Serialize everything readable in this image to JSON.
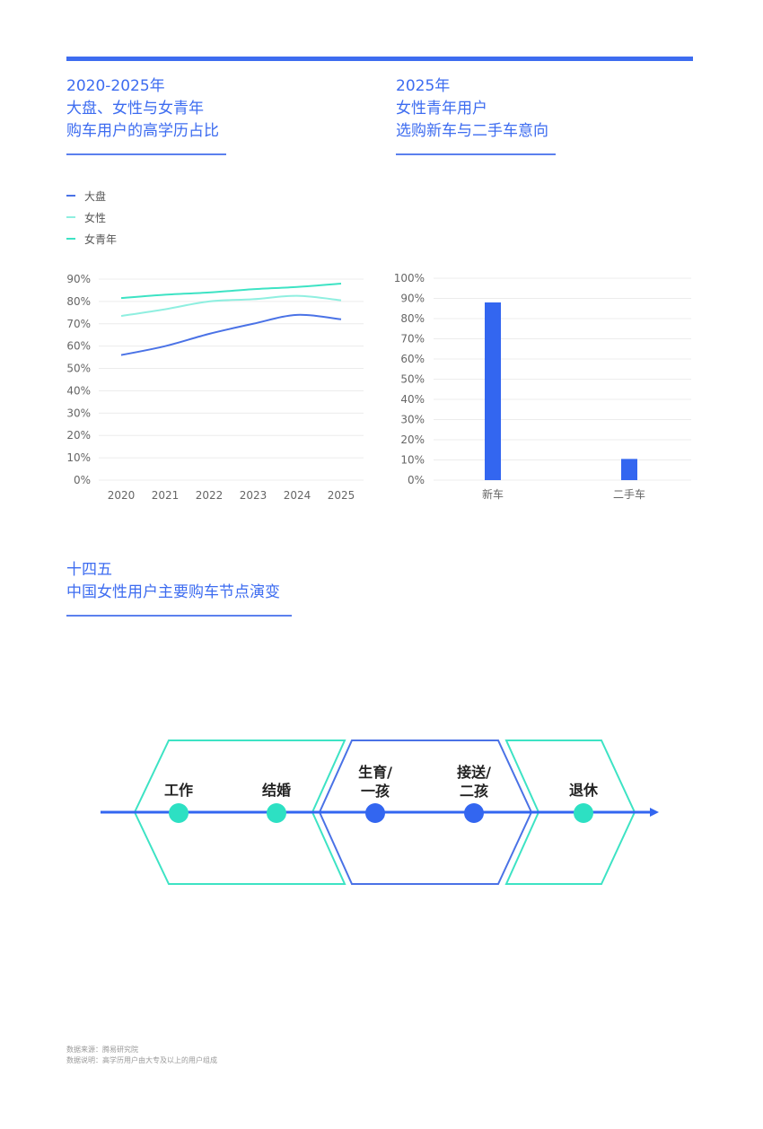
{
  "left_title": [
    "2020-2025年",
    "大盘、女性与女青年",
    "购车用户的高学历占比"
  ],
  "right_title": [
    "2025年",
    "女性青年用户",
    "选购新车与二手车意向"
  ],
  "bottom_title": [
    "十四五",
    "中国女性用户主要购车节点演变"
  ],
  "colors": {
    "accent": "#3d6cf0",
    "series_dapan": "#4a72e6",
    "series_nvxing": "#8fefe0",
    "series_nvqingnian": "#3de3c4",
    "bar": "#3366f0",
    "node_teal": "#2de0c3",
    "node_blue": "#3366f0"
  },
  "chart_data": [
    {
      "type": "line",
      "x": [
        "2020",
        "2021",
        "2022",
        "2023",
        "2024",
        "2025"
      ],
      "series": [
        {
          "name": "大盘",
          "values": [
            56,
            60,
            65.5,
            70,
            74,
            72
          ]
        },
        {
          "name": "女性",
          "values": [
            73.5,
            76.5,
            80,
            81,
            82.5,
            80.5
          ]
        },
        {
          "name": "女青年",
          "values": [
            81.5,
            83,
            84,
            85.5,
            86.5,
            88
          ]
        }
      ],
      "yticks": [
        "0%",
        "10%",
        "20%",
        "30%",
        "40%",
        "50%",
        "60%",
        "70%",
        "80%",
        "90%"
      ],
      "ylim": [
        0,
        90
      ],
      "grid": true,
      "legend_position": "top-left"
    },
    {
      "type": "bar",
      "categories": [
        "新车",
        "二手车"
      ],
      "values": [
        88,
        10.5
      ],
      "yticks": [
        "0%",
        "10%",
        "20%",
        "30%",
        "40%",
        "50%",
        "60%",
        "70%",
        "80%",
        "90%",
        "100%"
      ],
      "ylim": [
        0,
        100
      ],
      "grid": true
    }
  ],
  "timeline": {
    "nodes": [
      {
        "label": "工作",
        "color": "teal"
      },
      {
        "label": "结婚",
        "color": "teal"
      },
      {
        "label": "生育/\n一孩",
        "color": "blue"
      },
      {
        "label": "接送/\n二孩",
        "color": "blue"
      },
      {
        "label": "退休",
        "color": "teal"
      }
    ]
  },
  "footnotes": [
    "数据来源：腾易研究院",
    "数据说明：高学历用户由大专及以上的用户组成"
  ]
}
